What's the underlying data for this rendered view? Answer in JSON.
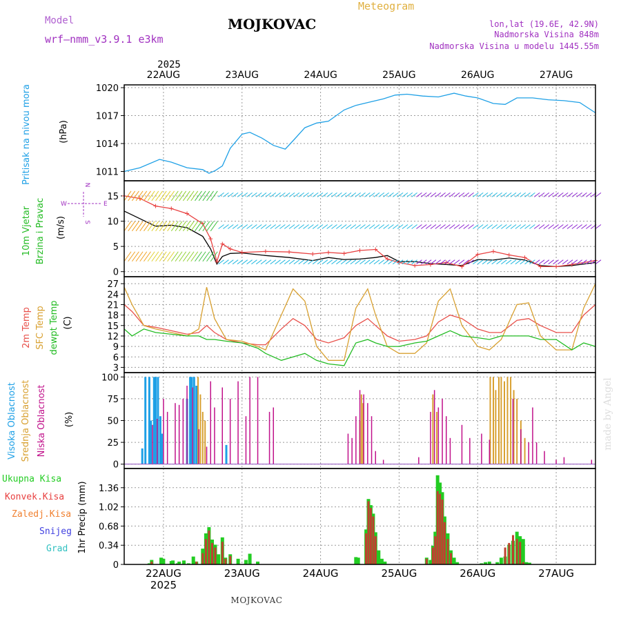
{
  "header": {
    "model_label": "Model",
    "model_name": "wrf—nmm_v3.9.1  e3km",
    "station": "MOJKOVAC",
    "meteogram": "Meteogram",
    "lonlat": "lon,lat (19.6E, 42.9N)",
    "elev": "Nadmorska Visina 848m",
    "elev_model": "Nadmorska Visina u modelu 1445.55m",
    "footer_station": "MOJKOVAC",
    "credit": "made by Angel",
    "year": "2025"
  },
  "colors": {
    "pressure": "#1ea0e6",
    "wind_lbl1": "#22bb22",
    "wind_lbl2": "#22bb22",
    "wind_axis": "#a020f0",
    "temp2m": "#e8504a",
    "sfc": "#d8a030",
    "dew": "#22bb22",
    "cloud_high": "#1ea0e6",
    "cloud_mid": "#d8a030",
    "cloud_low": "#c0108a",
    "precip_total": "#22cc22",
    "precip_conv": "#e84040",
    "precip_frozen": "#f08030",
    "snow": "#4040e0",
    "hail": "#30c0c0"
  },
  "chart_data": [
    {
      "type": "line",
      "id": "pressure",
      "ylabel": [
        "Pritisak na nivou mora",
        "(hPa)"
      ],
      "ylim": [
        1010,
        1020.3
      ],
      "yticks": [
        1011,
        1014,
        1017,
        1020
      ],
      "x_days": [
        "22AUG",
        "23AUG",
        "24AUG",
        "25AUG",
        "26AUG",
        "27AUG"
      ],
      "x_start": 21.5,
      "x_end": 27.5,
      "series": [
        {
          "name": "Pritisak",
          "x": [
            21.5,
            21.7,
            21.95,
            22.1,
            22.3,
            22.5,
            22.58,
            22.66,
            22.75,
            22.85,
            23.0,
            23.1,
            23.25,
            23.4,
            23.55,
            23.65,
            23.8,
            23.95,
            24.1,
            24.3,
            24.45,
            24.6,
            24.8,
            24.95,
            25.1,
            25.3,
            25.5,
            25.7,
            25.85,
            26.0,
            26.2,
            26.35,
            26.5,
            26.7,
            26.9,
            27.1,
            27.3,
            27.5
          ],
          "values": [
            1011.0,
            1011.4,
            1012.3,
            1012.0,
            1011.4,
            1011.2,
            1010.8,
            1011.1,
            1011.6,
            1013.5,
            1015.0,
            1015.2,
            1014.6,
            1013.8,
            1013.4,
            1014.3,
            1015.7,
            1016.2,
            1016.4,
            1017.6,
            1018.1,
            1018.4,
            1018.8,
            1019.2,
            1019.3,
            1019.1,
            1019.0,
            1019.4,
            1019.1,
            1018.9,
            1018.3,
            1018.2,
            1018.9,
            1018.9,
            1018.7,
            1018.6,
            1018.4,
            1017.3
          ]
        }
      ]
    },
    {
      "type": "line",
      "id": "wind",
      "ylabel": [
        "10m Vjetar",
        "Brzina i Pravac",
        "(m/s)"
      ],
      "compass": [
        "N",
        "S",
        "W",
        "E"
      ],
      "ylim": [
        -1,
        18
      ],
      "yticks": [
        0,
        5,
        10,
        15
      ],
      "series": [
        {
          "name": "Brzina",
          "x": [
            21.5,
            21.7,
            21.9,
            22.1,
            22.3,
            22.5,
            22.6,
            22.68,
            22.75,
            22.85,
            23.0,
            23.3,
            23.6,
            23.9,
            24.1,
            24.3,
            24.5,
            24.7,
            24.85,
            25.0,
            25.2,
            25.4,
            25.6,
            25.8,
            26.0,
            26.2,
            26.4,
            26.6,
            26.8,
            27.0,
            27.2,
            27.5
          ],
          "values": [
            12.0,
            10.5,
            9.0,
            9.2,
            8.7,
            7.0,
            4.5,
            1.5,
            3.0,
            3.6,
            3.7,
            3.2,
            2.8,
            2.2,
            2.8,
            2.4,
            2.5,
            2.8,
            3.2,
            2.0,
            2.0,
            1.6,
            1.4,
            1.2,
            2.4,
            2.3,
            2.7,
            2.3,
            1.2,
            1.0,
            1.2,
            1.8
          ]
        },
        {
          "name": "Udari",
          "x": [
            21.5,
            21.7,
            21.9,
            22.1,
            22.3,
            22.5,
            22.6,
            22.68,
            22.75,
            22.85,
            23.0,
            23.3,
            23.6,
            23.9,
            24.1,
            24.3,
            24.5,
            24.7,
            24.85,
            25.0,
            25.2,
            25.4,
            25.6,
            25.8,
            26.0,
            26.2,
            26.4,
            26.6,
            26.8,
            27.0,
            27.2,
            27.5
          ],
          "values": [
            15.0,
            14.5,
            13.0,
            12.5,
            11.5,
            9.5,
            6.5,
            2.0,
            5.5,
            4.5,
            3.8,
            4.0,
            3.9,
            3.5,
            3.8,
            3.6,
            4.2,
            4.4,
            2.5,
            1.8,
            1.2,
            1.4,
            1.8,
            1.0,
            3.4,
            4.0,
            3.3,
            2.8,
            1.0,
            1.0,
            1.4,
            2.2
          ]
        }
      ]
    },
    {
      "type": "line",
      "id": "temperature",
      "ylabel": [
        "2m Temp",
        "SFC Temp",
        "dewpt Temp",
        "(C)"
      ],
      "ylim": [
        1.5,
        29
      ],
      "yticks": [
        3,
        6,
        9,
        12,
        15,
        18,
        21,
        24,
        27
      ],
      "series": [
        {
          "name": "2m Temp",
          "x": [
            21.5,
            21.6,
            21.75,
            21.9,
            22.1,
            22.3,
            22.45,
            22.55,
            22.65,
            22.8,
            23.0,
            23.2,
            23.3,
            23.5,
            23.65,
            23.8,
            23.95,
            24.1,
            24.3,
            24.45,
            24.6,
            24.7,
            24.85,
            25.0,
            25.2,
            25.35,
            25.5,
            25.65,
            25.8,
            26.0,
            26.15,
            26.3,
            26.5,
            26.65,
            26.8,
            27.0,
            27.2,
            27.35,
            27.5
          ],
          "values": [
            21.0,
            19.0,
            15.0,
            14.5,
            13.5,
            12.5,
            13.0,
            15.0,
            13.0,
            11.0,
            10.0,
            9.5,
            9.5,
            14.0,
            17.0,
            15.0,
            11.0,
            10.0,
            11.5,
            15.0,
            17.0,
            15.0,
            12.0,
            10.5,
            11.0,
            12.0,
            16.0,
            18.0,
            17.0,
            14.0,
            13.0,
            13.0,
            16.5,
            17.0,
            15.0,
            13.0,
            13.0,
            18.0,
            21.0
          ]
        },
        {
          "name": "SFC Temp",
          "x": [
            21.5,
            21.6,
            21.75,
            21.9,
            22.1,
            22.3,
            22.45,
            22.55,
            22.65,
            22.8,
            23.0,
            23.2,
            23.3,
            23.5,
            23.65,
            23.8,
            23.95,
            24.1,
            24.3,
            24.45,
            24.6,
            24.7,
            24.85,
            25.0,
            25.2,
            25.35,
            25.5,
            25.65,
            25.8,
            26.0,
            26.15,
            26.3,
            26.5,
            26.65,
            26.8,
            27.0,
            27.2,
            27.35,
            27.5
          ],
          "values": [
            26.0,
            21.0,
            15.0,
            14.0,
            13.0,
            12.0,
            14.0,
            26.0,
            17.0,
            11.0,
            10.5,
            9.0,
            8.0,
            18.0,
            25.5,
            22.0,
            9.0,
            5.0,
            5.0,
            20.0,
            25.5,
            18.0,
            9.0,
            7.0,
            7.0,
            10.0,
            22.0,
            25.5,
            15.0,
            9.0,
            8.0,
            11.0,
            21.0,
            21.5,
            12.0,
            8.0,
            8.0,
            20.0,
            27.0
          ]
        },
        {
          "name": "dewpt Temp",
          "x": [
            21.5,
            21.6,
            21.75,
            21.9,
            22.1,
            22.3,
            22.45,
            22.55,
            22.65,
            22.8,
            23.0,
            23.2,
            23.3,
            23.5,
            23.65,
            23.8,
            23.95,
            24.1,
            24.3,
            24.45,
            24.6,
            24.7,
            24.85,
            25.0,
            25.2,
            25.35,
            25.5,
            25.65,
            25.8,
            26.0,
            26.15,
            26.3,
            26.5,
            26.65,
            26.8,
            27.0,
            27.2,
            27.35,
            27.5
          ],
          "values": [
            14.0,
            12.0,
            14.0,
            13.0,
            12.5,
            12.0,
            12.0,
            11.0,
            11.0,
            10.5,
            10.0,
            8.5,
            7.0,
            5.0,
            6.0,
            7.0,
            5.0,
            4.0,
            3.5,
            10.0,
            11.0,
            10.0,
            9.0,
            9.0,
            10.0,
            10.5,
            12.0,
            13.5,
            12.0,
            11.5,
            11.0,
            12.0,
            12.0,
            12.0,
            11.0,
            11.0,
            8.0,
            10.0,
            9.0
          ]
        }
      ]
    },
    {
      "type": "bar",
      "id": "cloud",
      "ylabel": [
        "Visoka Oblacnost",
        "Srednja Oblacnost",
        "Niska Oblacnost",
        "(%)"
      ],
      "ylim": [
        -5,
        105
      ],
      "yticks": [
        0,
        25,
        50,
        75,
        100
      ],
      "series": [
        {
          "name": "Visoka Oblacnost",
          "x": [
            21.73,
            21.77,
            21.82,
            21.84,
            21.88,
            21.9,
            21.93,
            21.96,
            21.98,
            22.3,
            22.34,
            22.36,
            22.39,
            22.42,
            22.8
          ],
          "values": [
            18,
            100,
            100,
            50,
            100,
            100,
            100,
            55,
            35,
            75,
            100,
            100,
            100,
            90,
            22
          ]
        },
        {
          "name": "Srednja Oblacnost",
          "x": [
            22.44,
            22.47,
            22.5,
            22.53,
            24.5,
            24.52,
            24.54,
            25.43,
            25.48,
            26.16,
            26.2,
            26.23,
            26.27,
            26.3,
            26.34,
            26.38,
            26.42,
            26.46,
            26.5,
            26.55,
            26.6
          ],
          "values": [
            100,
            80,
            60,
            50,
            50,
            80,
            70,
            80,
            60,
            100,
            100,
            85,
            100,
            100,
            95,
            100,
            100,
            85,
            75,
            50,
            30
          ]
        },
        {
          "name": "Niska Oblacnost",
          "x": [
            21.86,
            21.92,
            22.0,
            22.05,
            22.15,
            22.2,
            22.25,
            22.3,
            22.37,
            22.45,
            22.55,
            22.6,
            22.65,
            22.75,
            22.85,
            22.95,
            23.05,
            23.1,
            23.2,
            23.35,
            23.4,
            24.35,
            24.4,
            24.45,
            24.5,
            24.55,
            24.6,
            24.65,
            24.7,
            24.8,
            25.25,
            25.4,
            25.45,
            25.5,
            25.55,
            25.6,
            25.65,
            25.8,
            25.9,
            26.05,
            26.15,
            26.45,
            26.55,
            26.65,
            26.7,
            26.75,
            26.85,
            27.0,
            27.1,
            27.45
          ],
          "values": [
            45,
            52,
            75,
            60,
            70,
            68,
            75,
            90,
            88,
            40,
            20,
            95,
            65,
            88,
            75,
            95,
            55,
            100,
            100,
            60,
            65,
            35,
            30,
            55,
            85,
            80,
            70,
            55,
            15,
            5,
            8,
            60,
            85,
            65,
            75,
            55,
            30,
            45,
            30,
            35,
            28,
            75,
            40,
            25,
            65,
            25,
            15,
            5,
            8,
            5
          ]
        }
      ]
    },
    {
      "type": "bar",
      "id": "precip",
      "ylabel": [
        "Ukupna Kisa",
        "Konvek.Kisa",
        "Zaledj.Kisa",
        "Snijeg",
        "Grad",
        "1hr Precip (mm)"
      ],
      "ylim": [
        0,
        1.7
      ],
      "yticks": [
        0,
        0.34,
        0.68,
        1.02,
        1.36
      ],
      "ytick_labels": [
        "0",
        "0.34",
        "0.68",
        "1.02",
        "1.36"
      ],
      "series": [
        {
          "name": "Ukupna Kisa",
          "x": [
            21.82,
            21.85,
            21.97,
            22.0,
            22.1,
            22.12,
            22.18,
            22.2,
            22.26,
            22.32,
            22.38,
            22.42,
            22.5,
            22.54,
            22.58,
            22.62,
            22.66,
            22.7,
            22.75,
            22.79,
            22.85,
            22.95,
            23.05,
            23.1,
            23.2,
            24.45,
            24.48,
            24.58,
            24.61,
            24.64,
            24.67,
            24.7,
            24.74,
            24.78,
            24.82,
            25.35,
            25.4,
            25.43,
            25.46,
            25.49,
            25.52,
            25.55,
            25.58,
            25.62,
            25.66,
            25.7,
            25.74,
            26.05,
            26.1,
            26.15,
            26.25,
            26.3,
            26.35,
            26.4,
            26.45,
            26.5,
            26.54,
            26.58,
            26.62,
            26.66
          ],
          "values": [
            0.02,
            0.08,
            0.12,
            0.1,
            0.06,
            0.07,
            0.02,
            0.05,
            0.07,
            0.02,
            0.14,
            0.05,
            0.28,
            0.55,
            0.66,
            0.44,
            0.35,
            0.18,
            0.48,
            0.12,
            0.18,
            0.1,
            0.08,
            0.19,
            0.05,
            0.13,
            0.12,
            0.62,
            1.16,
            1.05,
            0.9,
            0.57,
            0.25,
            0.1,
            0.05,
            0.12,
            0.08,
            0.33,
            0.58,
            1.58,
            1.45,
            1.28,
            0.85,
            0.55,
            0.25,
            0.12,
            0.04,
            0.02,
            0.04,
            0.05,
            0.04,
            0.12,
            0.14,
            0.35,
            0.42,
            0.58,
            0.5,
            0.45,
            0.04,
            0.03
          ]
        },
        {
          "name": "Konvek.Kisa",
          "x": [
            21.85,
            22.42,
            22.5,
            22.54,
            22.58,
            22.62,
            22.66,
            22.75,
            22.79,
            22.85,
            24.58,
            24.61,
            24.64,
            24.67,
            24.7,
            25.35,
            25.43,
            25.46,
            25.49,
            25.52,
            25.55,
            25.58,
            25.62,
            25.66,
            26.35,
            26.4,
            26.45,
            26.5,
            26.54,
            26.58
          ],
          "values": [
            0.05,
            0.05,
            0.2,
            0.45,
            0.6,
            0.38,
            0.3,
            0.4,
            0.1,
            0.15,
            0.55,
            1.12,
            1.0,
            0.85,
            0.5,
            0.1,
            0.3,
            0.5,
            1.3,
            1.25,
            1.15,
            0.75,
            0.45,
            0.2,
            0.3,
            0.38,
            0.52,
            0.45,
            0.4,
            0.04
          ]
        }
      ]
    }
  ]
}
